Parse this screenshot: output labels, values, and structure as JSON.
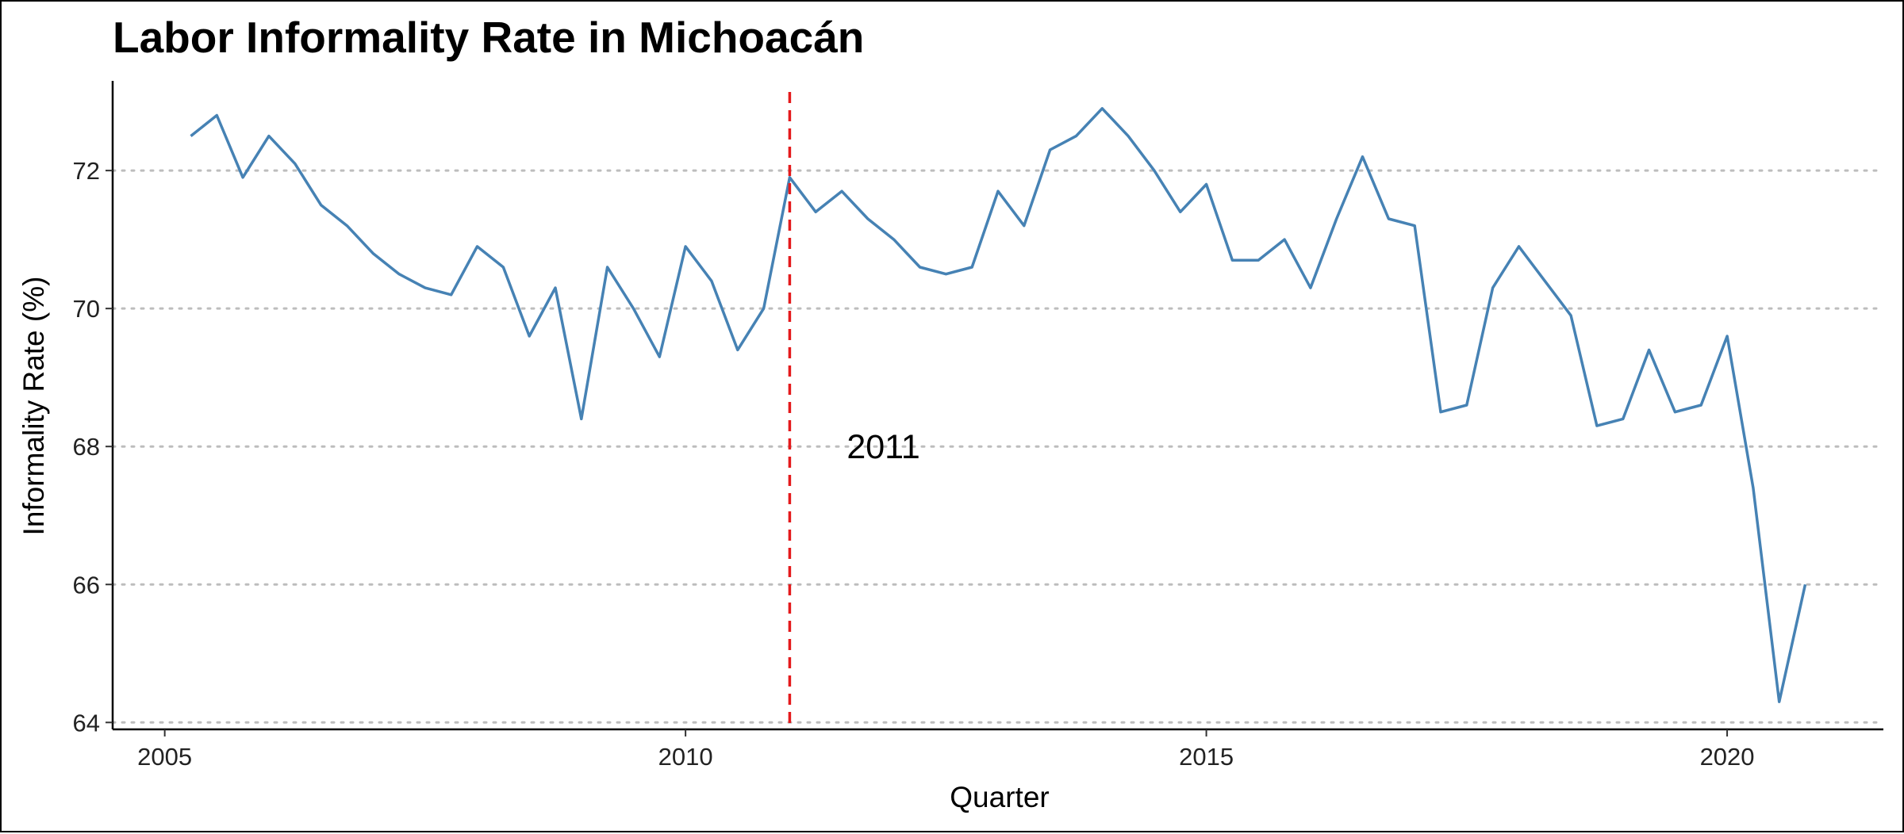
{
  "chart_data": {
    "type": "line",
    "title": "Labor Informality Rate in Michoacán",
    "xlabel": "Quarter",
    "ylabel": "Informality Rate (%)",
    "xlim": [
      2004.5,
      2021.5
    ],
    "ylim": [
      63.9,
      73.3
    ],
    "x_ticks": [
      2005,
      2010,
      2015,
      2020
    ],
    "x_tick_labels": [
      "2005",
      "2010",
      "2015",
      "2020"
    ],
    "y_ticks": [
      64,
      66,
      68,
      70,
      72
    ],
    "y_tick_labels": [
      "64",
      "66",
      "68",
      "70",
      "72"
    ],
    "grid": "horizontal dotted",
    "series": [
      {
        "color": "#4682b4",
        "x": [
          2005.25,
          2005.5,
          2005.75,
          2006.0,
          2006.25,
          2006.5,
          2006.75,
          2007.0,
          2007.25,
          2007.5,
          2007.75,
          2008.0,
          2008.25,
          2008.5,
          2008.75,
          2009.0,
          2009.25,
          2009.5,
          2009.75,
          2010.0,
          2010.25,
          2010.5,
          2010.75,
          2011.0,
          2011.25,
          2011.5,
          2011.75,
          2012.0,
          2012.25,
          2012.5,
          2012.75,
          2013.0,
          2013.25,
          2013.5,
          2013.75,
          2014.0,
          2014.25,
          2014.5,
          2014.75,
          2015.0,
          2015.25,
          2015.5,
          2015.75,
          2016.0,
          2016.25,
          2016.5,
          2016.75,
          2017.0,
          2017.25,
          2017.5,
          2017.75,
          2018.0,
          2018.25,
          2018.5,
          2018.75,
          2019.0,
          2019.25,
          2019.5,
          2019.75,
          2020.0,
          2020.25,
          2020.5,
          2020.75
        ],
        "y": [
          72.5,
          72.8,
          71.9,
          72.5,
          72.1,
          71.5,
          71.2,
          70.8,
          70.5,
          70.3,
          70.2,
          70.9,
          70.6,
          69.6,
          70.3,
          68.4,
          70.6,
          70.0,
          69.3,
          70.9,
          70.4,
          69.4,
          70.0,
          71.9,
          71.4,
          71.7,
          71.3,
          71.0,
          70.6,
          70.5,
          70.6,
          71.7,
          71.2,
          72.3,
          72.5,
          72.9,
          72.5,
          72.0,
          71.4,
          71.8,
          70.7,
          70.7,
          71.0,
          70.3,
          71.3,
          72.2,
          71.3,
          71.2,
          68.5,
          68.6,
          70.3,
          70.9,
          70.4,
          69.9,
          68.3,
          68.4,
          69.4,
          68.5,
          68.6,
          69.6,
          67.4,
          64.3,
          66.0
        ]
      }
    ],
    "vline": {
      "x": 2011.0,
      "color": "#e41a1c",
      "style": "dashed"
    },
    "annotations": [
      {
        "text": "2011",
        "x": 2011.9,
        "y": 68.0
      }
    ]
  }
}
